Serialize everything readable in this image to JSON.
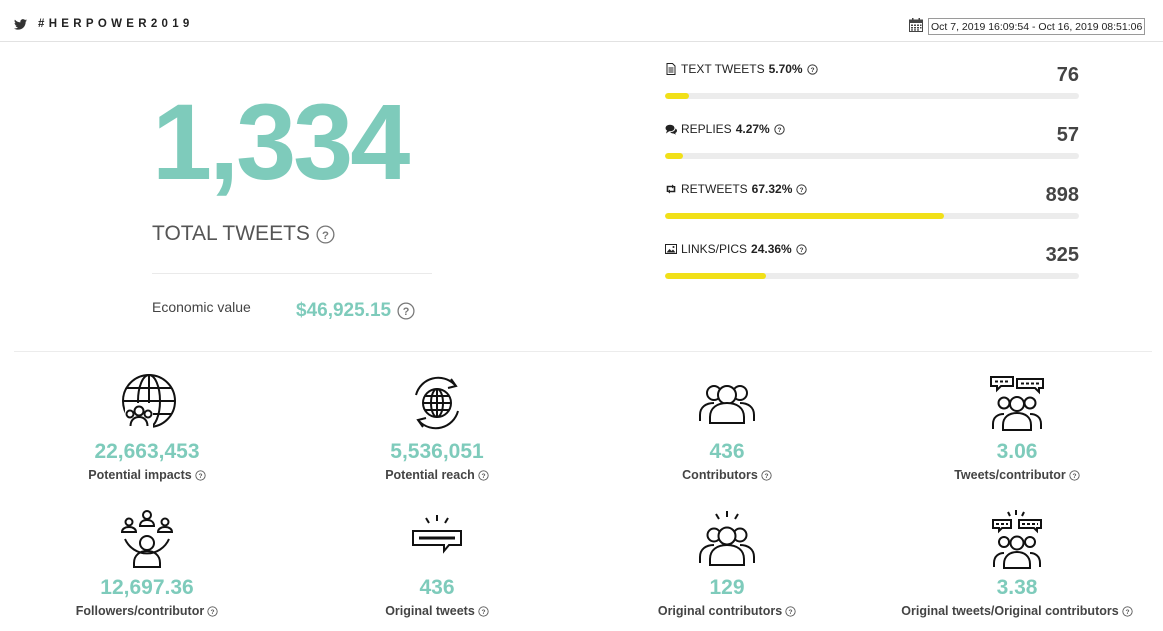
{
  "header": {
    "hashtag": "#HERPOWER2019",
    "date_range": "Oct 7, 2019 16:09:54 - Oct 16, 2019 08:51:06"
  },
  "summary": {
    "total_tweets": "1,334",
    "total_tweets_label": "TOTAL TWEETS",
    "economic_value_label": "Economic value",
    "economic_value": "$46,925.15"
  },
  "breakdown": [
    {
      "label": "TEXT TWEETS",
      "percent": "5.70%",
      "count": "76",
      "fill": 0.057,
      "icon": "document-icon"
    },
    {
      "label": "REPLIES",
      "percent": "4.27%",
      "count": "57",
      "fill": 0.0427,
      "icon": "comments-icon"
    },
    {
      "label": "RETWEETS",
      "percent": "67.32%",
      "count": "898",
      "fill": 0.6732,
      "icon": "retweet-icon"
    },
    {
      "label": "LINKS/PICS",
      "percent": "24.36%",
      "count": "325",
      "fill": 0.2436,
      "icon": "image-icon"
    }
  ],
  "stats": [
    {
      "value": "22,663,453",
      "label": "Potential impacts",
      "icon": "globe-people-icon"
    },
    {
      "value": "5,536,051",
      "label": "Potential reach",
      "icon": "globe-refresh-icon"
    },
    {
      "value": "436",
      "label": "Contributors",
      "icon": "group-icon"
    },
    {
      "value": "3.06",
      "label": "Tweets/contributor",
      "icon": "group-chat-icon"
    },
    {
      "value": "12,697.36",
      "label": "Followers/contributor",
      "icon": "network-icon"
    },
    {
      "value": "436",
      "label": "Original tweets",
      "icon": "tweet-burst-icon"
    },
    {
      "value": "129",
      "label": "Original contributors",
      "icon": "group-burst-icon"
    },
    {
      "value": "3.38",
      "label": "Original tweets/Original contributors",
      "icon": "group-chat-burst-icon"
    }
  ],
  "colors": {
    "accent": "#7ecbbb",
    "bar_fill": "#f1e018",
    "bar_track": "#ececec"
  }
}
